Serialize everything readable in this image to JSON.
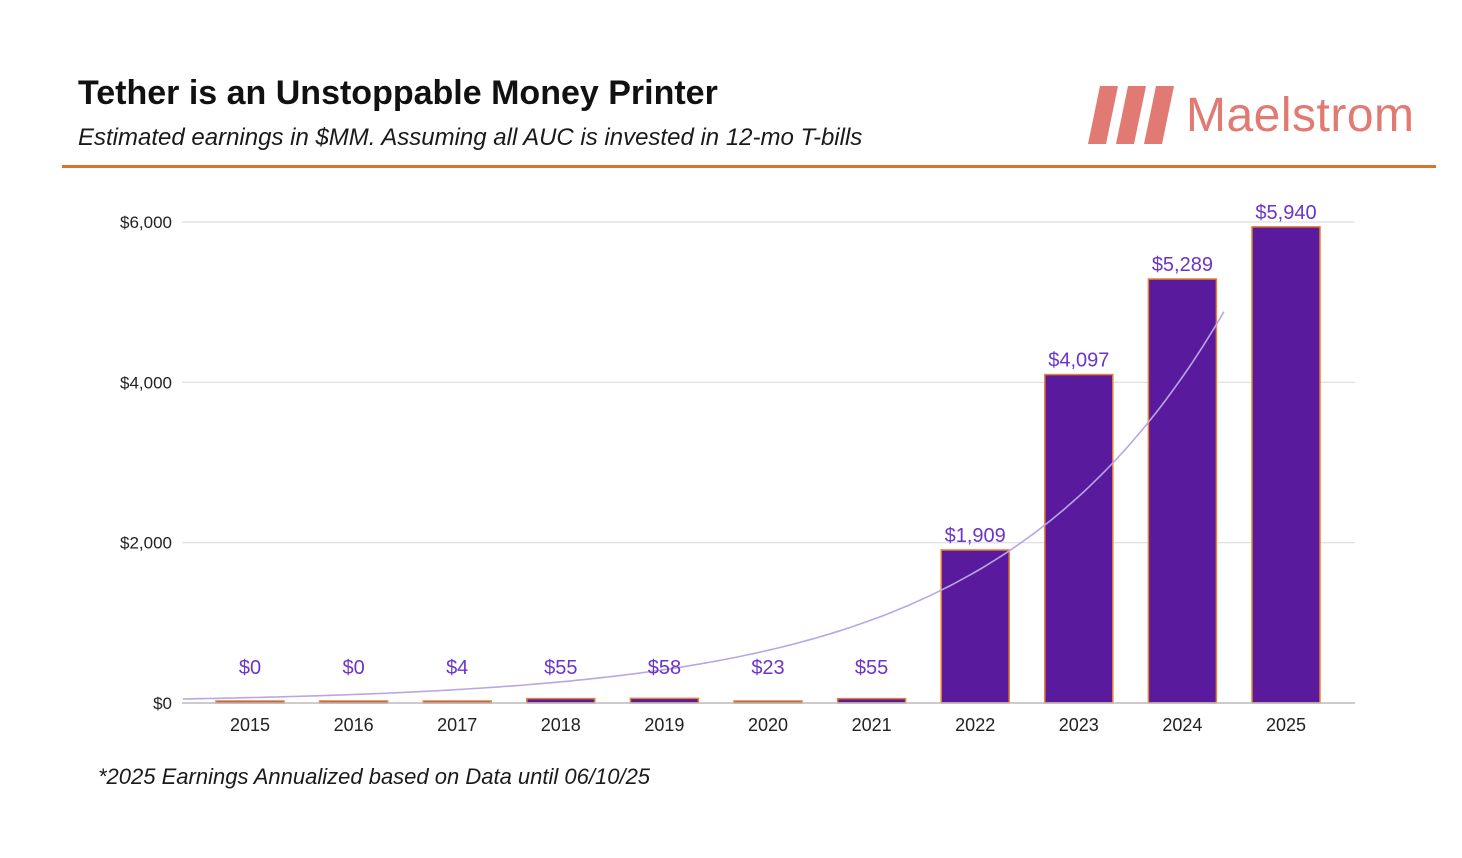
{
  "chart_data": {
    "type": "bar",
    "title": "Tether is an Unstoppable Money Printer",
    "subtitle": "Estimated earnings in $MM. Assuming all AUC is invested in 12-mo T-bills",
    "categories": [
      "2015",
      "2016",
      "2017",
      "2018",
      "2019",
      "2020",
      "2021",
      "2022",
      "2023",
      "2024",
      "2025"
    ],
    "values": [
      0,
      0,
      4,
      55,
      58,
      23,
      55,
      1909,
      4097,
      5289,
      5940
    ],
    "data_labels": [
      "$0",
      "$0",
      "$4",
      "$55",
      "$58",
      "$23",
      "$55",
      "$1,909",
      "$4,097",
      "$5,289",
      "$5,940"
    ],
    "yticks": [
      0,
      2000,
      4000,
      6000
    ],
    "ytick_labels": [
      "$0",
      "$2,000",
      "$4,000",
      "$6,000"
    ],
    "ylim": [
      0,
      6000
    ],
    "xlabel": "",
    "ylabel": "",
    "grid": true,
    "trendline": "exponential",
    "bar_color": "#5a1a9e",
    "bar_edge_color": "#e8822f",
    "label_color": "#6a35c9",
    "trend_color": "#b9a6e6",
    "footnote": "*2025 Earnings Annualized based on Data until 06/10/25"
  },
  "brand": {
    "name": "Maelstrom",
    "color": "#e07a72",
    "rule_color": "#d9742b"
  }
}
